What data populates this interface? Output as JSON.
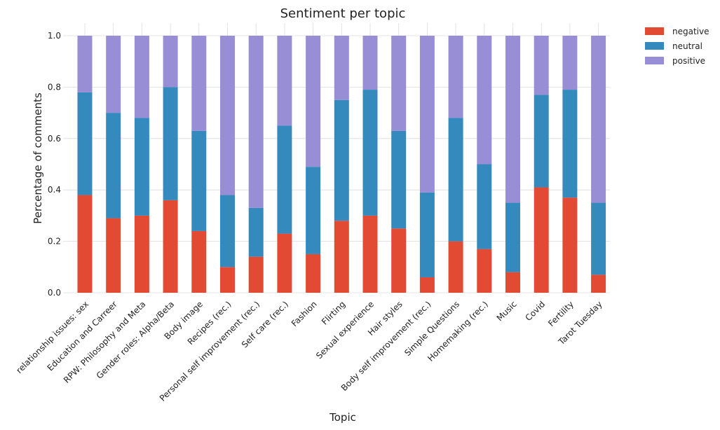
{
  "chart_data": {
    "type": "bar",
    "stacked": true,
    "title": "Sentiment per topic",
    "xlabel": "Topic",
    "ylabel": "Percentage of comments",
    "ylim": [
      0,
      1.0
    ],
    "yticks": [
      "0.0",
      "0.2",
      "0.4",
      "0.6",
      "0.8",
      "1.0"
    ],
    "grid": true,
    "legend_position": "upper-right-outside",
    "categories": [
      "relationship issues: sex",
      "Education and Carreer",
      "RPW: Philosophy and Meta",
      "Gender roles: Alpha/Beta",
      "Body image",
      "Recipes (rec.)",
      "Personal self improvement (rec.)",
      "Self care (rec.)",
      "Fashion",
      "Flirting",
      "Sexual experience",
      "Hair styles",
      "Body self improvement (rec.)",
      "Simple Questions",
      "Homemaking (rec.)",
      "Music",
      "Covid",
      "Fertility",
      "Tarot Tuesday"
    ],
    "series": [
      {
        "name": "negative",
        "color": "#e24a33",
        "values": [
          0.38,
          0.29,
          0.3,
          0.36,
          0.24,
          0.1,
          0.14,
          0.23,
          0.15,
          0.28,
          0.3,
          0.25,
          0.06,
          0.2,
          0.17,
          0.08,
          0.41,
          0.37,
          0.07
        ]
      },
      {
        "name": "neutral",
        "color": "#348abd",
        "values": [
          0.4,
          0.41,
          0.38,
          0.44,
          0.39,
          0.28,
          0.19,
          0.42,
          0.34,
          0.47,
          0.49,
          0.38,
          0.33,
          0.48,
          0.33,
          0.27,
          0.36,
          0.42,
          0.28
        ]
      },
      {
        "name": "positive",
        "color": "#988ed5",
        "values": [
          0.22,
          0.3,
          0.32,
          0.2,
          0.37,
          0.62,
          0.67,
          0.35,
          0.51,
          0.25,
          0.21,
          0.37,
          0.61,
          0.32,
          0.5,
          0.65,
          0.23,
          0.21,
          0.65
        ]
      }
    ]
  }
}
